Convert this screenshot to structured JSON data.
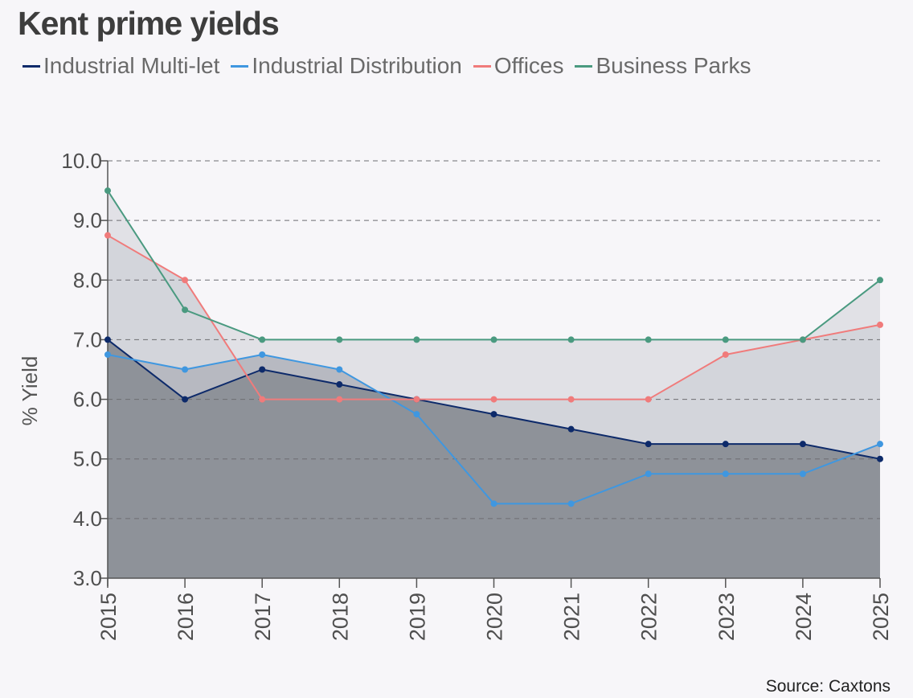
{
  "title": "Kent prime yields",
  "source": "Source: Caxtons",
  "chart_data": {
    "type": "line",
    "title": "Kent prime yields",
    "xlabel": "",
    "ylabel": "% Yield",
    "ylim": [
      3,
      10
    ],
    "yticks": [
      3,
      4,
      5,
      6,
      7,
      8,
      9,
      10
    ],
    "ytick_labels": [
      "3.0",
      "4.0",
      "5.0",
      "6.0",
      "7.0",
      "8.0",
      "9.0",
      "10.0"
    ],
    "grid": true,
    "legend_position": "top-left",
    "categories": [
      "2015",
      "2016",
      "2017",
      "2018",
      "2019",
      "2020",
      "2021",
      "2022",
      "2023",
      "2024",
      "2025"
    ],
    "series": [
      {
        "name": "Industrial Multi-let",
        "color": "#0d2a6a",
        "values": [
          7.0,
          6.0,
          6.5,
          6.25,
          6.0,
          5.75,
          5.5,
          5.25,
          5.25,
          5.25,
          5.0
        ]
      },
      {
        "name": "Industrial Distribution",
        "color": "#3f97e0",
        "values": [
          6.75,
          6.5,
          6.75,
          6.5,
          5.75,
          4.25,
          4.25,
          4.75,
          4.75,
          4.75,
          5.25
        ]
      },
      {
        "name": "Offices",
        "color": "#f07b7b",
        "values": [
          8.75,
          8.0,
          6.0,
          6.0,
          6.0,
          6.0,
          6.0,
          6.0,
          6.75,
          7.0,
          7.25
        ]
      },
      {
        "name": "Business Parks",
        "color": "#4a9a80",
        "values": [
          9.5,
          7.5,
          7.0,
          7.0,
          7.0,
          7.0,
          7.0,
          7.0,
          7.0,
          7.0,
          8.0
        ]
      }
    ]
  }
}
